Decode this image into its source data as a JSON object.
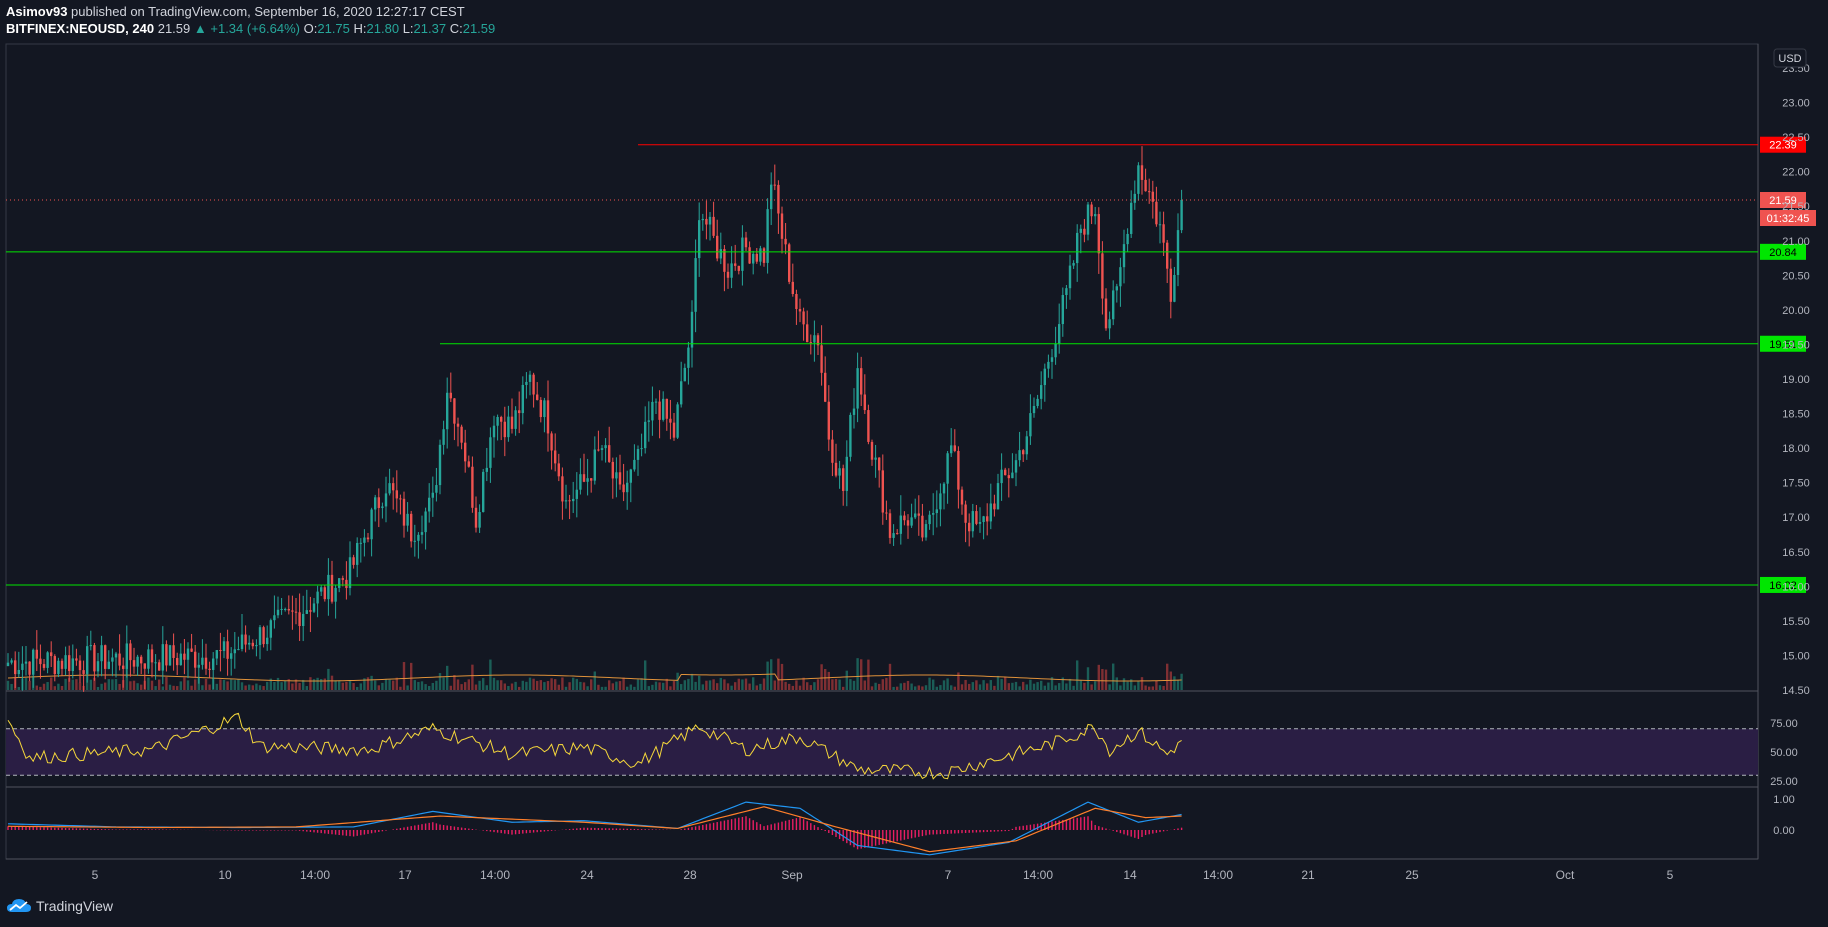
{
  "header": {
    "publisher": "Asimov93",
    "published_text": "published on TradingView.com, September 16, 2020 12:27:17 CEST",
    "symbol": "BITFINEX:NEOUSD, 240",
    "last": "21.59",
    "change": "▲ +1.34 (+6.64%)",
    "o_label": "O:",
    "o": "21.75",
    "h_label": "H:",
    "h": "21.80",
    "l_label": "L:",
    "l": "21.37",
    "c_label": "C:",
    "c": "21.59"
  },
  "currency_badge": "USD",
  "footer": {
    "brand": "TradingView"
  },
  "colors": {
    "background": "#131722",
    "up": "#26a69a",
    "down": "#ef5350",
    "support_line": "#00e600",
    "resistance_line": "#ff0000",
    "rsi_line": "#f5d73b",
    "rsi_band": "#2a1e44",
    "macd_line": "#2196f3",
    "signal_line": "#ff7f2a",
    "histogram": "#e91e63"
  },
  "chart_data": {
    "type": "candlestick",
    "price_axis": {
      "ticks": [
        "14.50",
        "15.00",
        "15.50",
        "16.00",
        "16.50",
        "17.00",
        "17.50",
        "18.00",
        "18.50",
        "19.00",
        "19.50",
        "20.00",
        "20.50",
        "21.00",
        "21.50",
        "22.00",
        "22.50",
        "23.00",
        "23.50"
      ],
      "range": [
        14.5,
        23.5
      ]
    },
    "time_axis": {
      "ticks": [
        "5",
        "10",
        "14:00",
        "17",
        "14:00",
        "24",
        "28",
        "Sep",
        "7",
        "14:00",
        "14",
        "14:00",
        "21",
        "25",
        "Oct",
        "5"
      ]
    },
    "horizontal_levels": [
      {
        "price": 22.39,
        "label": "22.39",
        "style": "resistance"
      },
      {
        "price": 20.84,
        "label": "20.84",
        "style": "support"
      },
      {
        "price": 19.51,
        "label": "19.51",
        "style": "support"
      },
      {
        "price": 16.02,
        "label": "16.02",
        "style": "support"
      },
      {
        "price": 21.59,
        "label": "21.59",
        "style": "last_price"
      }
    ],
    "countdown": "01:32:45",
    "anchors": [
      [
        0,
        14.9
      ],
      [
        60,
        15.0
      ],
      [
        70,
        15.3
      ],
      [
        80,
        15.6
      ],
      [
        95,
        16.2
      ],
      [
        105,
        17.5
      ],
      [
        112,
        16.8
      ],
      [
        118,
        17.2
      ],
      [
        122,
        18.9
      ],
      [
        126,
        18.2
      ],
      [
        130,
        17.0
      ],
      [
        135,
        18.5
      ],
      [
        140,
        18.3
      ],
      [
        145,
        19.0
      ],
      [
        150,
        18.4
      ],
      [
        155,
        17.2
      ],
      [
        160,
        17.5
      ],
      [
        165,
        18.0
      ],
      [
        170,
        17.3
      ],
      [
        175,
        17.8
      ],
      [
        180,
        18.7
      ],
      [
        185,
        18.2
      ],
      [
        190,
        19.8
      ],
      [
        192,
        21.5
      ],
      [
        196,
        21.0
      ],
      [
        200,
        20.6
      ],
      [
        205,
        20.9
      ],
      [
        210,
        20.8
      ],
      [
        212,
        21.9
      ],
      [
        216,
        20.8
      ],
      [
        220,
        19.8
      ],
      [
        225,
        19.6
      ],
      [
        228,
        18.2
      ],
      [
        232,
        17.4
      ],
      [
        236,
        19.2
      ],
      [
        240,
        18.0
      ],
      [
        245,
        16.8
      ],
      [
        250,
        17.0
      ],
      [
        255,
        16.7
      ],
      [
        258,
        17.3
      ],
      [
        262,
        18.0
      ],
      [
        266,
        17.0
      ],
      [
        270,
        16.8
      ],
      [
        275,
        17.4
      ],
      [
        280,
        17.8
      ],
      [
        285,
        18.5
      ],
      [
        290,
        19.5
      ],
      [
        294,
        20.2
      ],
      [
        298,
        21.2
      ],
      [
        302,
        21.5
      ],
      [
        305,
        19.8
      ],
      [
        308,
        20.2
      ],
      [
        311,
        21.3
      ],
      [
        314,
        22.1
      ],
      [
        317,
        21.7
      ],
      [
        320,
        21.2
      ],
      [
        323,
        20.3
      ],
      [
        326,
        21.59
      ]
    ],
    "rsi": {
      "levels": [
        "75.00",
        "50.00",
        "25.00"
      ],
      "anchors": [
        [
          0,
          78
        ],
        [
          6,
          45
        ],
        [
          40,
          52
        ],
        [
          64,
          80
        ],
        [
          70,
          55
        ],
        [
          100,
          52
        ],
        [
          118,
          70
        ],
        [
          140,
          48
        ],
        [
          160,
          54
        ],
        [
          175,
          40
        ],
        [
          192,
          72
        ],
        [
          205,
          52
        ],
        [
          220,
          63
        ],
        [
          236,
          35
        ],
        [
          260,
          32
        ],
        [
          290,
          57
        ],
        [
          302,
          72
        ],
        [
          306,
          52
        ],
        [
          314,
          68
        ],
        [
          322,
          48
        ],
        [
          326,
          60
        ]
      ]
    },
    "macd": {
      "levels": [
        "1.00",
        "0.00"
      ],
      "macd_anchors": [
        [
          0,
          0.2
        ],
        [
          30,
          0.1
        ],
        [
          65,
          0.08
        ],
        [
          96,
          0.1
        ],
        [
          118,
          0.6
        ],
        [
          140,
          0.25
        ],
        [
          160,
          0.3
        ],
        [
          186,
          0.05
        ],
        [
          205,
          0.9
        ],
        [
          220,
          0.7
        ],
        [
          236,
          -0.5
        ],
        [
          256,
          -0.8
        ],
        [
          278,
          -0.4
        ],
        [
          300,
          0.9
        ],
        [
          314,
          0.25
        ],
        [
          326,
          0.5
        ]
      ],
      "signal_anchors": [
        [
          0,
          0.12
        ],
        [
          40,
          0.08
        ],
        [
          80,
          0.1
        ],
        [
          120,
          0.45
        ],
        [
          160,
          0.25
        ],
        [
          186,
          0.05
        ],
        [
          210,
          0.75
        ],
        [
          230,
          0.1
        ],
        [
          256,
          -0.7
        ],
        [
          280,
          -0.35
        ],
        [
          302,
          0.7
        ],
        [
          316,
          0.4
        ],
        [
          326,
          0.45
        ]
      ]
    }
  }
}
